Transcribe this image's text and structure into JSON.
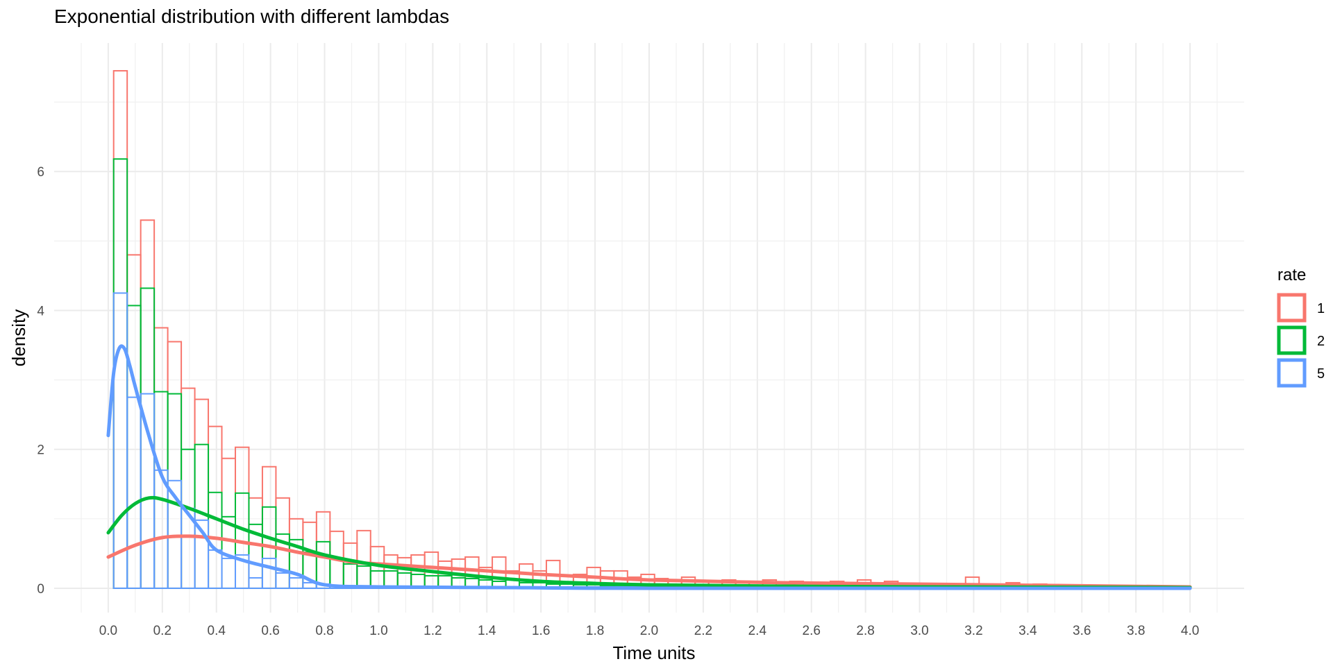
{
  "chart_data": {
    "type": "bar",
    "title": "Exponential distribution with different lambdas",
    "xlabel": "Time units",
    "ylabel": "density",
    "xlim": [
      -0.2,
      4.2
    ],
    "ylim": [
      -0.35,
      7.85
    ],
    "x_ticks": [
      0.0,
      0.2,
      0.4,
      0.6,
      0.8,
      1.0,
      1.2,
      1.4,
      1.6,
      1.8,
      2.0,
      2.2,
      2.4,
      2.6,
      2.8,
      3.0,
      3.2,
      3.4,
      3.6,
      3.8,
      4.0
    ],
    "x_tick_labels": [
      "0.0",
      "0.2",
      "0.4",
      "0.6",
      "0.8",
      "1.0",
      "1.2",
      "1.4",
      "1.6",
      "1.8",
      "2.0",
      "2.2",
      "2.4",
      "2.6",
      "2.8",
      "3.0",
      "3.2",
      "3.4",
      "3.6",
      "3.8",
      "4.0"
    ],
    "y_ticks": [
      0,
      2,
      4,
      6
    ],
    "y_tick_labels": [
      "0",
      "2",
      "4",
      "6"
    ],
    "grid": true,
    "legend": {
      "title": "rate",
      "position": "right"
    },
    "bin_start": 0.02,
    "bin_width": 0.05,
    "series": [
      {
        "name": "1",
        "color": "#F8766D",
        "histogram": [
          7.45,
          4.8,
          5.3,
          3.75,
          3.55,
          2.88,
          2.72,
          2.33,
          1.87,
          2.03,
          1.3,
          1.75,
          1.3,
          1.0,
          0.95,
          1.1,
          0.82,
          0.65,
          0.83,
          0.6,
          0.48,
          0.44,
          0.48,
          0.52,
          0.39,
          0.42,
          0.45,
          0.3,
          0.45,
          0.25,
          0.35,
          0.25,
          0.4,
          0.18,
          0.2,
          0.3,
          0.25,
          0.25,
          0.16,
          0.2,
          0.14,
          0.12,
          0.16,
          0.1,
          0.1,
          0.12,
          0.1,
          0.08,
          0.12,
          0.08,
          0.1,
          0.08,
          0.08,
          0.1,
          0.08,
          0.12,
          0.06,
          0.1,
          0.06,
          0.06,
          0.06,
          0.06,
          0.06,
          0.16,
          0.06,
          0.06,
          0.08,
          0.04,
          0.06,
          0.04,
          0.04,
          0.04,
          0.04,
          0.04,
          0.04,
          0.03,
          0.03,
          0.03,
          0.03
        ],
        "density_x": [
          0.0,
          0.1,
          0.2,
          0.3,
          0.4,
          0.5,
          0.6,
          0.7,
          0.8,
          0.9,
          1.0,
          1.2,
          1.4,
          1.6,
          1.8,
          2.0,
          2.5,
          3.0,
          3.5,
          4.0
        ],
        "density_y": [
          0.45,
          0.62,
          0.73,
          0.75,
          0.72,
          0.66,
          0.6,
          0.52,
          0.45,
          0.38,
          0.35,
          0.3,
          0.25,
          0.2,
          0.16,
          0.12,
          0.08,
          0.06,
          0.04,
          0.02
        ]
      },
      {
        "name": "2",
        "color": "#00BA38",
        "histogram": [
          6.18,
          4.07,
          4.32,
          2.83,
          2.8,
          2.0,
          2.07,
          1.38,
          1.03,
          1.37,
          0.92,
          1.17,
          0.78,
          0.7,
          0.52,
          0.67,
          0.43,
          0.35,
          0.32,
          0.25,
          0.25,
          0.22,
          0.2,
          0.18,
          0.18,
          0.15,
          0.14,
          0.12,
          0.1,
          0.12,
          0.08,
          0.08,
          0.06,
          0.06,
          0.05,
          0.05,
          0.04,
          0.04,
          0.03,
          0.03,
          0.03,
          0.03,
          0.02,
          0.02,
          0.02,
          0.02,
          0.02,
          0.02,
          0.02,
          0.02,
          0.02,
          0.02,
          0.02,
          0.02,
          0.02,
          0.02,
          0.02,
          0.02,
          0.02,
          0.02,
          0.02,
          0.02,
          0.02,
          0.02,
          0.02,
          0.02,
          0.02,
          0.02,
          0.02,
          0.02,
          0.02,
          0.02,
          0.02,
          0.02,
          0.02
        ],
        "density_x": [
          0.0,
          0.05,
          0.1,
          0.15,
          0.2,
          0.3,
          0.4,
          0.5,
          0.6,
          0.7,
          0.8,
          1.0,
          1.2,
          1.4,
          1.6,
          1.8,
          2.0,
          2.5,
          3.0,
          4.0
        ],
        "density_y": [
          0.8,
          1.05,
          1.22,
          1.3,
          1.28,
          1.15,
          1.0,
          0.85,
          0.72,
          0.6,
          0.48,
          0.33,
          0.24,
          0.16,
          0.1,
          0.07,
          0.05,
          0.03,
          0.02,
          0.01
        ]
      },
      {
        "name": "5",
        "color": "#619CFF",
        "histogram": [
          4.25,
          2.75,
          2.8,
          1.7,
          1.55,
          1.15,
          0.98,
          0.55,
          0.43,
          0.48,
          0.15,
          0.43,
          0.22,
          0.15,
          0.08,
          0.06,
          0.03,
          0.03,
          0.02,
          0.02,
          0.02,
          0.02,
          0.02,
          0.02,
          0.02,
          0.02,
          0.02,
          0.02,
          0.02,
          0.02,
          0.02,
          0.02,
          0.02,
          0.02,
          0.02,
          0.02,
          0.02,
          0.02,
          0.02,
          0.02,
          0.02,
          0.02,
          0.02,
          0.02,
          0.02,
          0.02,
          0.02,
          0.02,
          0.02,
          0.02,
          0.02,
          0.02,
          0.02,
          0.02,
          0.02,
          0.02,
          0.02,
          0.02,
          0.02,
          0.02,
          0.02,
          0.02,
          0.02,
          0.02,
          0.02,
          0.02,
          0.02,
          0.02,
          0.02,
          0.02,
          0.02,
          0.02,
          0.02,
          0.02,
          0.02,
          0.02,
          0.02,
          0.02,
          0.02
        ],
        "density_x": [
          0.0,
          0.02,
          0.04,
          0.06,
          0.08,
          0.1,
          0.15,
          0.2,
          0.25,
          0.3,
          0.35,
          0.4,
          0.5,
          0.6,
          0.7,
          0.8,
          1.0,
          1.5,
          2.0,
          4.0
        ],
        "density_y": [
          2.2,
          3.1,
          3.45,
          3.45,
          3.2,
          2.9,
          2.2,
          1.6,
          1.3,
          1.05,
          0.8,
          0.55,
          0.4,
          0.3,
          0.2,
          0.05,
          0.02,
          0.01,
          0.0,
          0.0
        ]
      }
    ]
  }
}
